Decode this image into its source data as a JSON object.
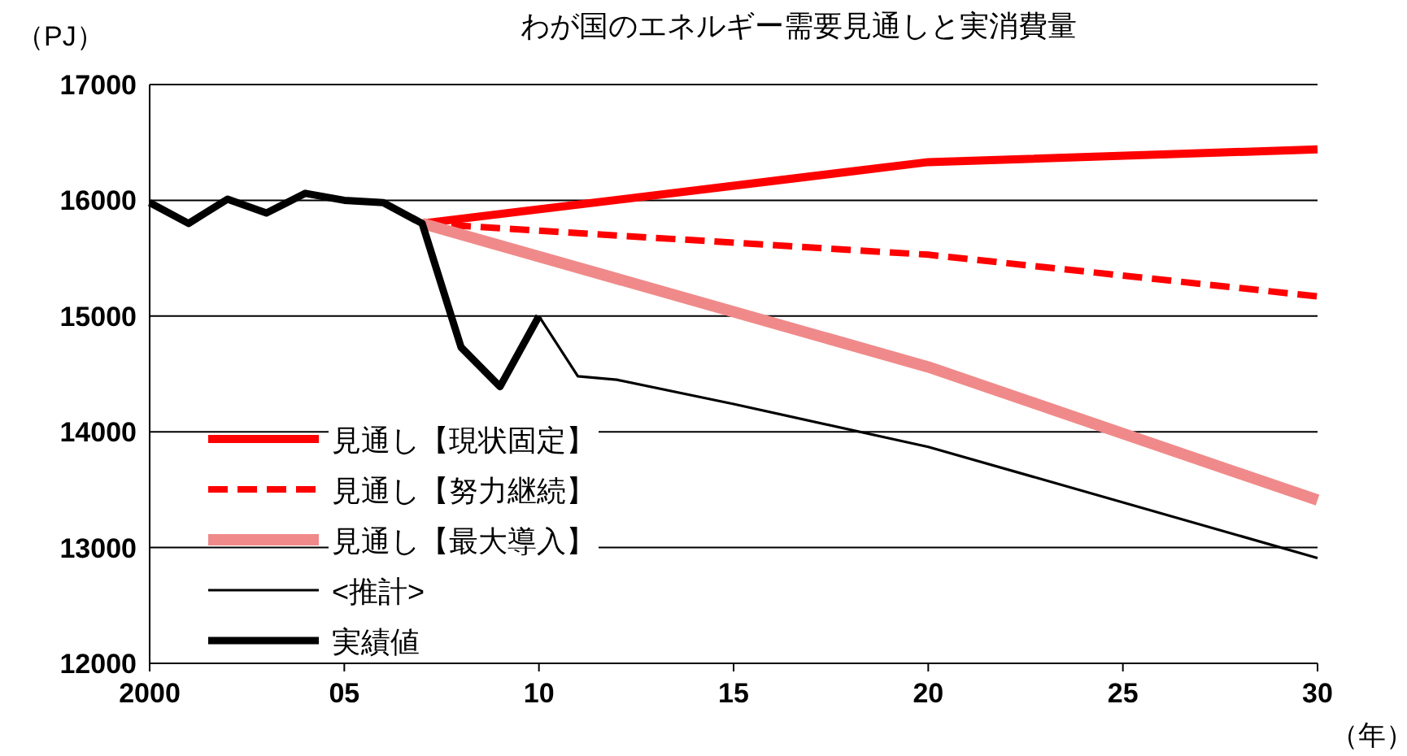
{
  "chart_data": {
    "type": "line",
    "title": "わが国のエネルギー需要見通しと実消費量",
    "ylabel": "（PJ）",
    "xlabel": "（年）",
    "xlim": [
      2000,
      2030
    ],
    "xticks": [
      {
        "value": 2000,
        "label": "2000"
      },
      {
        "value": 2005,
        "label": "05"
      },
      {
        "value": 2010,
        "label": "10"
      },
      {
        "value": 2015,
        "label": "15"
      },
      {
        "value": 2020,
        "label": "20"
      },
      {
        "value": 2025,
        "label": "25"
      },
      {
        "value": 2030,
        "label": "30"
      }
    ],
    "ylim": [
      12000,
      17000
    ],
    "yticks": [
      12000,
      13000,
      14000,
      15000,
      16000,
      17000
    ],
    "grid": "y",
    "legend": "bottom left",
    "marker": "none",
    "series": [
      {
        "name": "見通し【現状固定】",
        "color": "#ff0000",
        "line_style": "solid",
        "x": [
          2007,
          2020,
          2030
        ],
        "values": [
          15800,
          16330,
          16440
        ]
      },
      {
        "name": "見通し【努力継続】",
        "color": "#ff0000",
        "line_style": "dashed",
        "x": [
          2007,
          2020,
          2030
        ],
        "values": [
          15800,
          15530,
          15170
        ]
      },
      {
        "name": "見通し【最大導入】",
        "color": "#f08a8a",
        "line_style": "solid",
        "x": [
          2007,
          2020,
          2030
        ],
        "values": [
          15800,
          14560,
          13410
        ]
      },
      {
        "name": "<推計>",
        "color": "#000000",
        "line_style": "solid",
        "x": [
          2010,
          2011,
          2012,
          2015,
          2020,
          2030
        ],
        "values": [
          15000,
          14480,
          14450,
          14240,
          13870,
          12910
        ]
      },
      {
        "name": "実績値",
        "color": "#000000",
        "line_style": "solid",
        "x": [
          2000,
          2001,
          2002,
          2003,
          2004,
          2005,
          2006,
          2007,
          2008,
          2009,
          2010
        ],
        "values": [
          15980,
          15800,
          16010,
          15890,
          16060,
          16000,
          15980,
          15800,
          14730,
          14390,
          15000
        ]
      }
    ]
  }
}
